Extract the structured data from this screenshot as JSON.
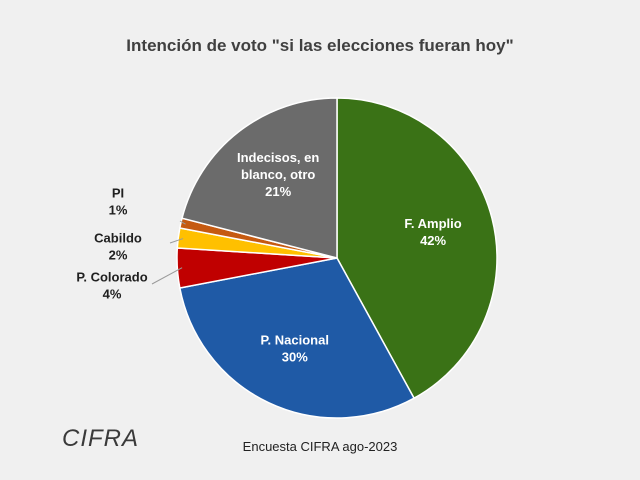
{
  "chart_data": {
    "type": "pie",
    "title": "Intención de voto \"si las elecciones fueran hoy\"",
    "slices": [
      {
        "name": "F. Amplio",
        "value": 42,
        "label": "42%",
        "color": "#3a7216"
      },
      {
        "name": "P. Nacional",
        "value": 30,
        "label": "30%",
        "color": "#1f5aa6"
      },
      {
        "name": "P. Colorado",
        "value": 4,
        "label": "4%",
        "color": "#c00000"
      },
      {
        "name": "Cabildo",
        "value": 2,
        "label": "2%",
        "color": "#ffc000"
      },
      {
        "name": "PI",
        "value": 1,
        "label": "1%",
        "color": "#c55a11"
      },
      {
        "name": "Indecisos, en blanco, otro",
        "value": 21,
        "label": "21%",
        "color": "#6b6b6b"
      }
    ],
    "start_angle": "12 o'clock, clockwise"
  },
  "footer": {
    "source": "Encuesta CIFRA ago-2023",
    "logo": "CIFRA"
  }
}
